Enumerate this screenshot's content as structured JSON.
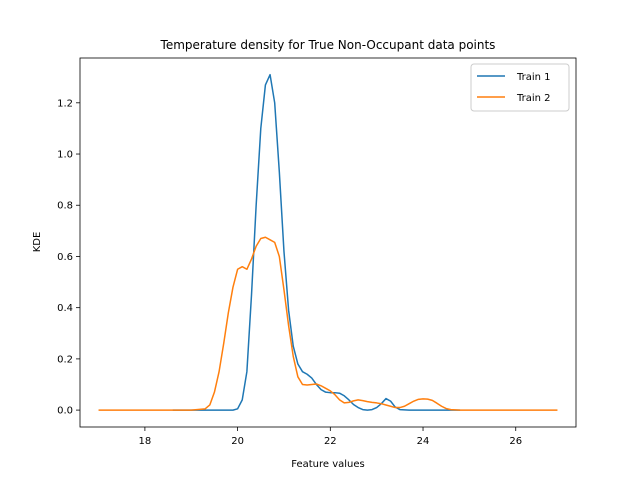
{
  "chart_data": {
    "type": "line",
    "title": "Temperature density for True Non-Occupant data points",
    "xlabel": "Feature values",
    "ylabel": "KDE",
    "xlim": [
      16.6,
      27.3
    ],
    "ylim": [
      -0.066,
      1.375
    ],
    "xticks": [
      18,
      20,
      22,
      24,
      26
    ],
    "yticks": [
      0.0,
      0.2,
      0.4,
      0.6,
      0.8,
      1.0,
      1.2
    ],
    "ytick_labels": [
      "0.0",
      "0.2",
      "0.4",
      "0.6",
      "0.8",
      "1.0",
      "1.2"
    ],
    "grid": false,
    "legend_position": "top-right",
    "series": [
      {
        "name": "Train 1",
        "color": "#1f77b4",
        "points": [
          [
            18.6,
            0.0
          ],
          [
            19.5,
            0.0
          ],
          [
            19.9,
            0.0
          ],
          [
            20.0,
            0.005
          ],
          [
            20.1,
            0.04
          ],
          [
            20.2,
            0.15
          ],
          [
            20.3,
            0.45
          ],
          [
            20.4,
            0.8
          ],
          [
            20.5,
            1.1
          ],
          [
            20.6,
            1.27
          ],
          [
            20.7,
            1.31
          ],
          [
            20.8,
            1.2
          ],
          [
            20.9,
            0.93
          ],
          [
            21.0,
            0.62
          ],
          [
            21.1,
            0.39
          ],
          [
            21.2,
            0.25
          ],
          [
            21.3,
            0.18
          ],
          [
            21.4,
            0.15
          ],
          [
            21.5,
            0.14
          ],
          [
            21.6,
            0.125
          ],
          [
            21.7,
            0.1
          ],
          [
            21.8,
            0.08
          ],
          [
            21.9,
            0.07
          ],
          [
            22.0,
            0.068
          ],
          [
            22.1,
            0.068
          ],
          [
            22.2,
            0.066
          ],
          [
            22.3,
            0.056
          ],
          [
            22.4,
            0.04
          ],
          [
            22.5,
            0.022
          ],
          [
            22.6,
            0.01
          ],
          [
            22.7,
            0.002
          ],
          [
            22.8,
            0.0
          ],
          [
            22.9,
            0.002
          ],
          [
            23.0,
            0.01
          ],
          [
            23.1,
            0.025
          ],
          [
            23.2,
            0.045
          ],
          [
            23.3,
            0.035
          ],
          [
            23.4,
            0.012
          ],
          [
            23.5,
            0.002
          ],
          [
            23.7,
            0.0
          ],
          [
            24.8,
            0.0
          ]
        ]
      },
      {
        "name": "Train 2",
        "color": "#ff7f0e",
        "points": [
          [
            17.0,
            0.0
          ],
          [
            19.0,
            0.0
          ],
          [
            19.3,
            0.005
          ],
          [
            19.4,
            0.02
          ],
          [
            19.5,
            0.07
          ],
          [
            19.6,
            0.15
          ],
          [
            19.7,
            0.26
          ],
          [
            19.8,
            0.38
          ],
          [
            19.9,
            0.48
          ],
          [
            20.0,
            0.55
          ],
          [
            20.1,
            0.56
          ],
          [
            20.2,
            0.55
          ],
          [
            20.3,
            0.59
          ],
          [
            20.4,
            0.64
          ],
          [
            20.5,
            0.67
          ],
          [
            20.6,
            0.675
          ],
          [
            20.7,
            0.665
          ],
          [
            20.8,
            0.655
          ],
          [
            20.9,
            0.6
          ],
          [
            21.0,
            0.47
          ],
          [
            21.1,
            0.33
          ],
          [
            21.2,
            0.21
          ],
          [
            21.3,
            0.13
          ],
          [
            21.4,
            0.1
          ],
          [
            21.5,
            0.098
          ],
          [
            21.6,
            0.1
          ],
          [
            21.7,
            0.102
          ],
          [
            21.8,
            0.095
          ],
          [
            21.9,
            0.085
          ],
          [
            22.0,
            0.075
          ],
          [
            22.1,
            0.06
          ],
          [
            22.2,
            0.04
          ],
          [
            22.3,
            0.028
          ],
          [
            22.4,
            0.03
          ],
          [
            22.5,
            0.036
          ],
          [
            22.6,
            0.04
          ],
          [
            22.7,
            0.037
          ],
          [
            22.8,
            0.033
          ],
          [
            22.9,
            0.03
          ],
          [
            23.0,
            0.028
          ],
          [
            23.1,
            0.025
          ],
          [
            23.2,
            0.02
          ],
          [
            23.3,
            0.015
          ],
          [
            23.4,
            0.01
          ],
          [
            23.5,
            0.01
          ],
          [
            23.6,
            0.015
          ],
          [
            23.7,
            0.025
          ],
          [
            23.8,
            0.035
          ],
          [
            23.9,
            0.042
          ],
          [
            24.0,
            0.044
          ],
          [
            24.1,
            0.043
          ],
          [
            24.2,
            0.038
          ],
          [
            24.3,
            0.027
          ],
          [
            24.4,
            0.015
          ],
          [
            24.5,
            0.006
          ],
          [
            24.6,
            0.002
          ],
          [
            24.8,
            0.0
          ],
          [
            26.9,
            0.0
          ]
        ]
      }
    ]
  }
}
